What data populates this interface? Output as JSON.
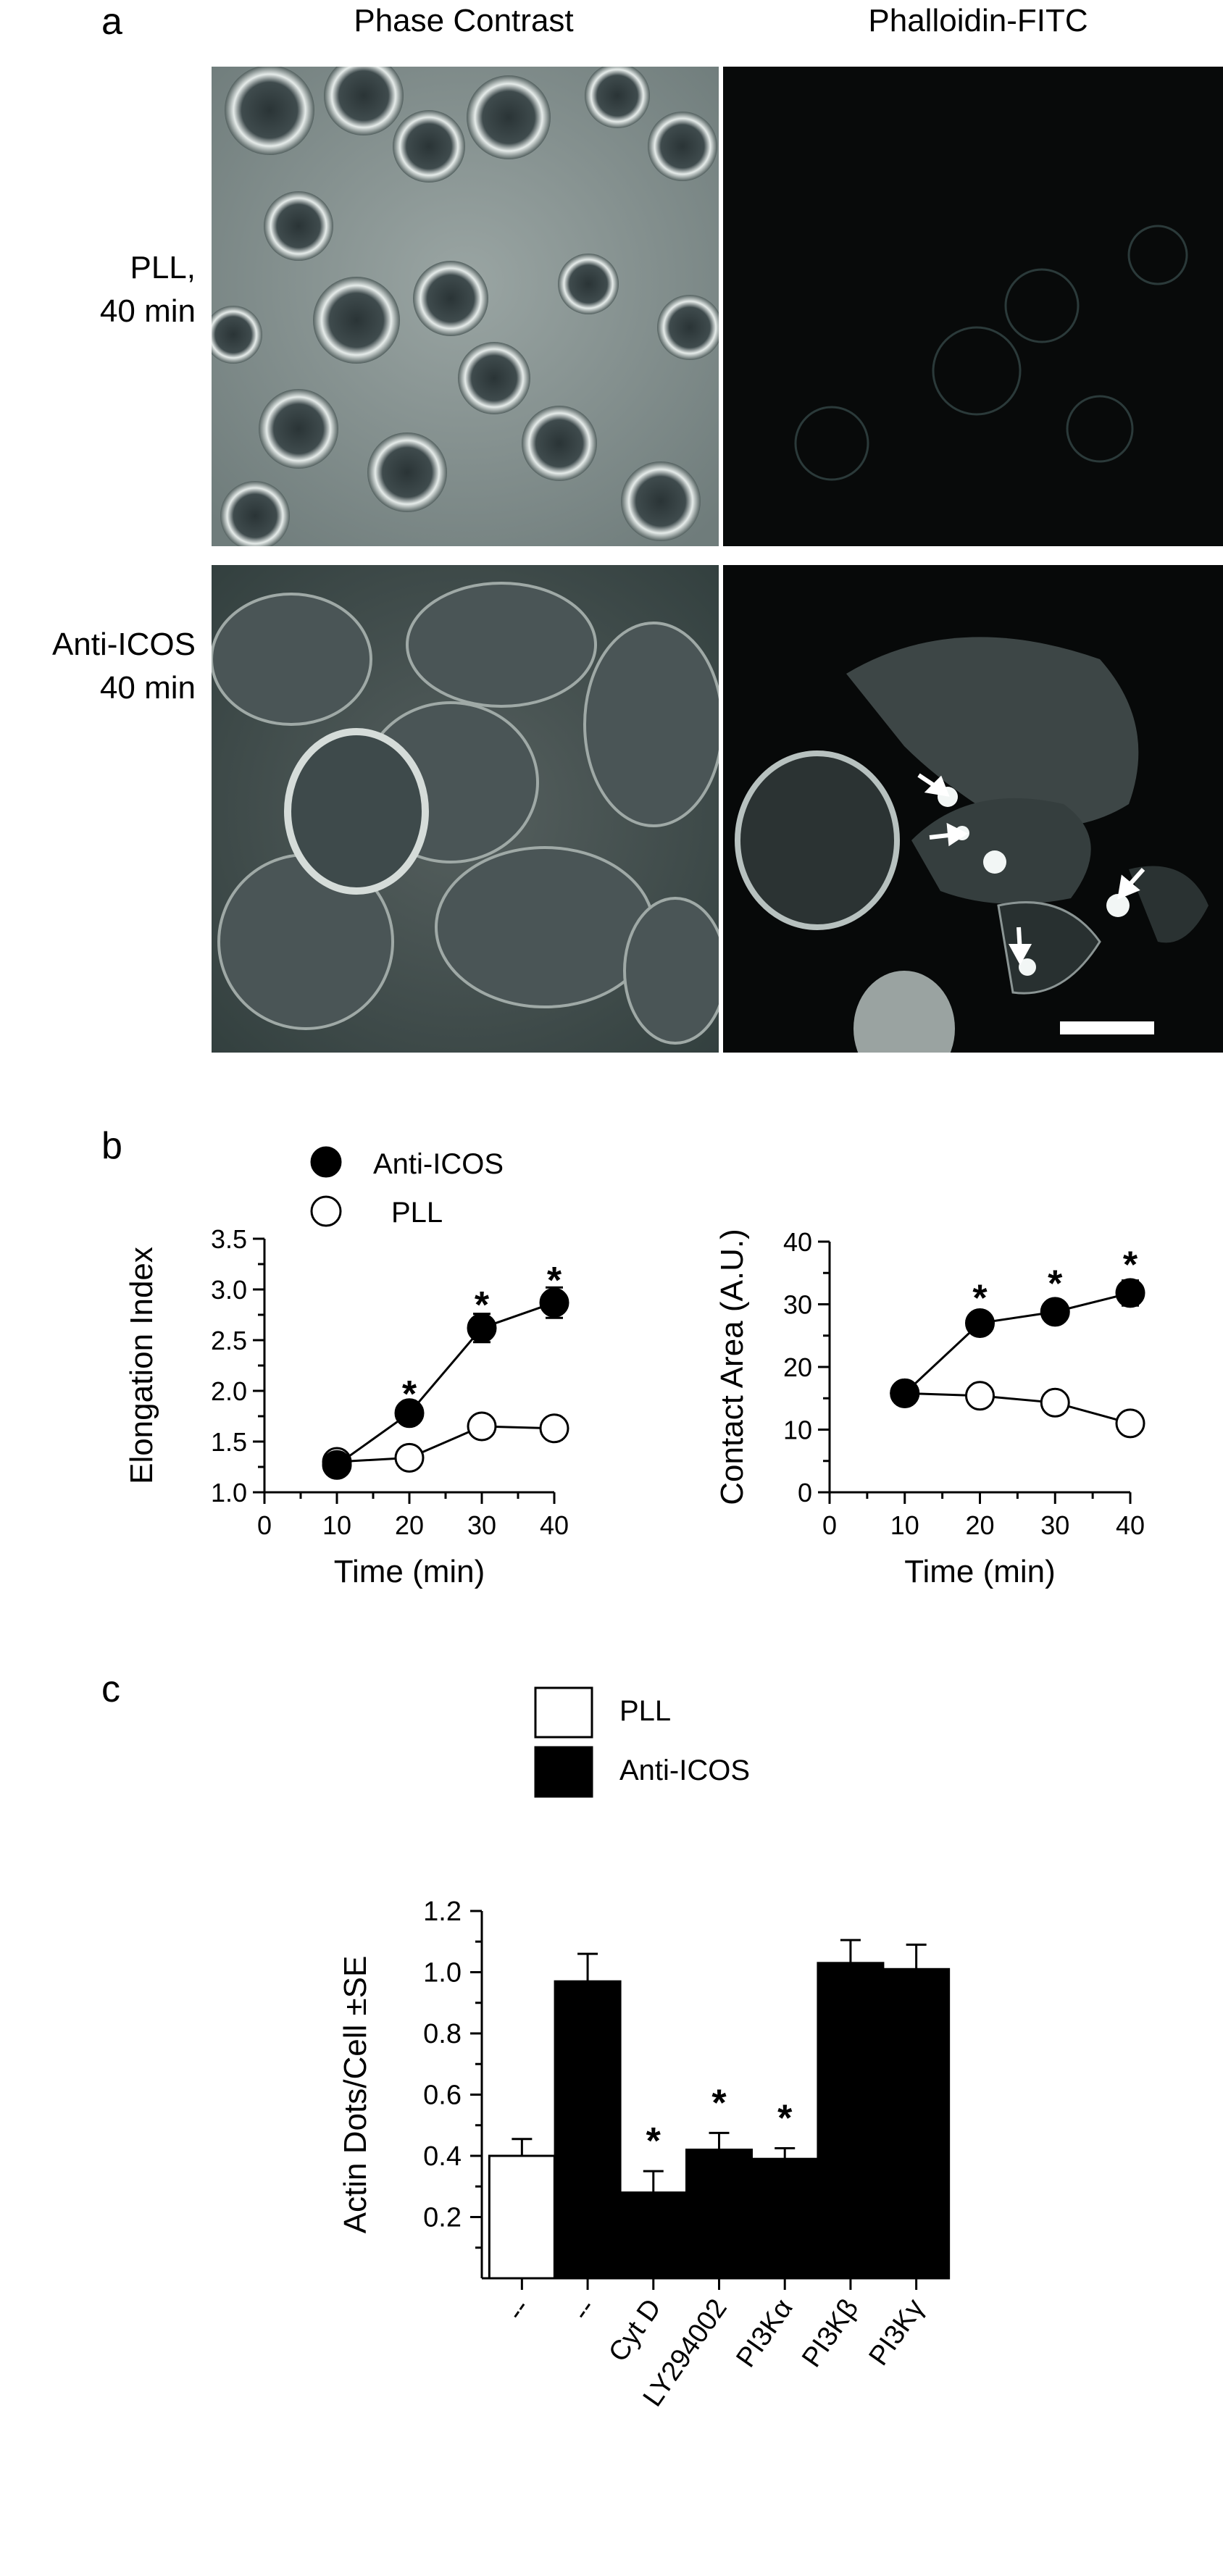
{
  "panel_a": {
    "letter": "a",
    "col1": "Phase Contrast",
    "col2": "Phalloidin-FITC",
    "row1": [
      "PLL,",
      "40 min"
    ],
    "row2": [
      "Anti-ICOS",
      "40 min"
    ]
  },
  "panel_b": {
    "letter": "b",
    "legend": {
      "filled": "Anti-ICOS",
      "open": "PLL"
    }
  },
  "panel_c": {
    "letter": "c",
    "legend": {
      "open": "PLL",
      "filled": "Anti-ICOS"
    }
  },
  "colors": {
    "filled": "#000000",
    "open": "#ffffff",
    "stroke": "#000000"
  },
  "chart_data": [
    {
      "id": "elongation",
      "type": "line",
      "xlabel": "Time (min)",
      "ylabel": "Elongation Index",
      "xlim": [
        0,
        40
      ],
      "ylim": [
        1.0,
        3.5
      ],
      "xticks": [
        "0",
        "10",
        "20",
        "30",
        "40"
      ],
      "yticks": [
        "1.0",
        "1.5",
        "2.0",
        "2.5",
        "3.0",
        "3.5"
      ],
      "x": [
        10,
        20,
        30,
        40
      ],
      "series": [
        {
          "name": "Anti-ICOS",
          "marker": "filled",
          "values": [
            1.27,
            1.78,
            2.62,
            2.87
          ],
          "err": [
            0.04,
            0.05,
            0.14,
            0.15
          ]
        },
        {
          "name": "PLL",
          "marker": "open",
          "values": [
            1.3,
            1.34,
            1.65,
            1.63
          ],
          "err": [
            0.03,
            0.04,
            0.06,
            0.11
          ]
        }
      ],
      "significance": [
        {
          "x": 20,
          "y": 2.0,
          "label": "*"
        },
        {
          "x": 30,
          "y": 2.88,
          "label": "*"
        },
        {
          "x": 40,
          "y": 3.12,
          "label": "*"
        }
      ]
    },
    {
      "id": "contact",
      "type": "line",
      "xlabel": "Time (min)",
      "ylabel": "Contact Area (A.U.)",
      "xlim": [
        0,
        40
      ],
      "ylim": [
        0,
        40
      ],
      "xticks": [
        "0",
        "10",
        "20",
        "30",
        "40"
      ],
      "yticks": [
        "0",
        "10",
        "20",
        "30",
        "40"
      ],
      "x": [
        10,
        20,
        30,
        40
      ],
      "series": [
        {
          "name": "Anti-ICOS",
          "marker": "filled",
          "values": [
            15.8,
            27.0,
            28.8,
            31.8
          ],
          "err": [
            0.6,
            1.0,
            1.6,
            2.0
          ]
        },
        {
          "name": "PLL",
          "marker": "open",
          "values": [
            15.8,
            15.4,
            14.3,
            11.0
          ],
          "err": [
            0.6,
            0.6,
            0.7,
            0.7
          ]
        }
      ],
      "significance": [
        {
          "x": 20,
          "y": 31.5,
          "label": "*"
        },
        {
          "x": 30,
          "y": 33.8,
          "label": "*"
        },
        {
          "x": 40,
          "y": 36.8,
          "label": "*"
        }
      ]
    },
    {
      "id": "actin-dots",
      "type": "bar",
      "ylabel": "Actin Dots/Cell ±SE",
      "ylim": [
        0.0,
        1.2
      ],
      "yticks": [
        "0.2",
        "0.4",
        "0.6",
        "0.8",
        "1.0",
        "1.2"
      ],
      "categories": [
        "--",
        "--",
        "Cyt D",
        "LY294002",
        "PI3Kα",
        "PI3Kβ",
        "PI3Kγ"
      ],
      "values": [
        0.4,
        0.97,
        0.28,
        0.42,
        0.39,
        1.03,
        1.01
      ],
      "err": [
        0.055,
        0.09,
        0.07,
        0.055,
        0.035,
        0.075,
        0.08
      ],
      "fill": [
        "open",
        "filled",
        "filled",
        "filled",
        "filled",
        "filled",
        "filled"
      ],
      "series_names": [
        "PLL",
        "Anti-ICOS"
      ],
      "significance": [
        {
          "index": 2,
          "label": "*"
        },
        {
          "index": 3,
          "label": "*"
        },
        {
          "index": 4,
          "label": "*"
        }
      ]
    }
  ]
}
